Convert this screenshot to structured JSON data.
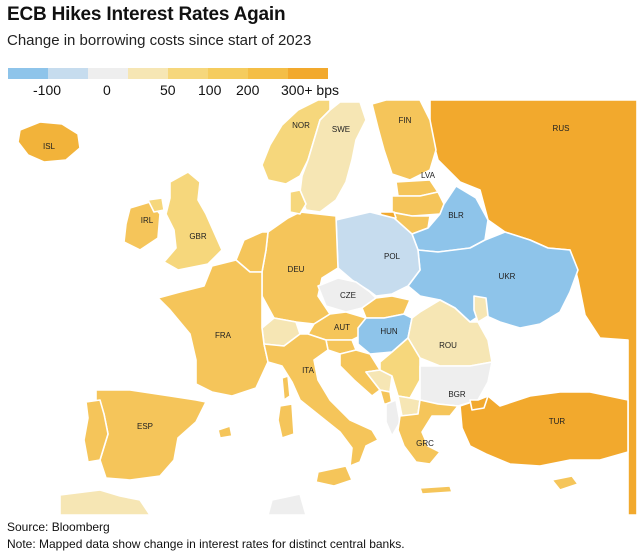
{
  "header": {
    "title": "ECB Hikes Interest Rates Again",
    "subtitle": "Change in borrowing costs since start of 2023"
  },
  "legend": {
    "colors": [
      "#8ec4ea",
      "#c6dcee",
      "#eeeeee",
      "#f6e6b4",
      "#f6d77c",
      "#f5cc5e",
      "#f4be46",
      "#f2a92d"
    ],
    "labels": [
      "-100",
      "0",
      "50",
      "100",
      "200",
      "300+ bps"
    ]
  },
  "colors": {
    "neg_strong": "#8ec4ea",
    "neg_light": "#c6dcee",
    "zero": "#eeeeee",
    "low": "#f6e6b4",
    "mid": "#f6d77c",
    "ecb": "#f5c55a",
    "high": "#f2b33a",
    "very_high": "#f2a92d"
  },
  "countries": {
    "ISL": "ISL",
    "NOR": "NOR",
    "SWE": "SWE",
    "FIN": "FIN",
    "RUS": "RUS",
    "LVA": "LVA",
    "BLR": "BLR",
    "IRL": "IRL",
    "GBR": "GBR",
    "POL": "POL",
    "DEU": "DEU",
    "UKR": "UKR",
    "CZE": "CZE",
    "FRA": "FRA",
    "AUT": "AUT",
    "HUN": "HUN",
    "ROU": "ROU",
    "ITA": "ITA",
    "BGR": "BGR",
    "ESP": "ESP",
    "TUR": "TUR",
    "GRC": "GRC"
  },
  "footer": {
    "source": "Source: Bloomberg",
    "note": "Note: Mapped data show change in interest rates for distinct central banks."
  }
}
